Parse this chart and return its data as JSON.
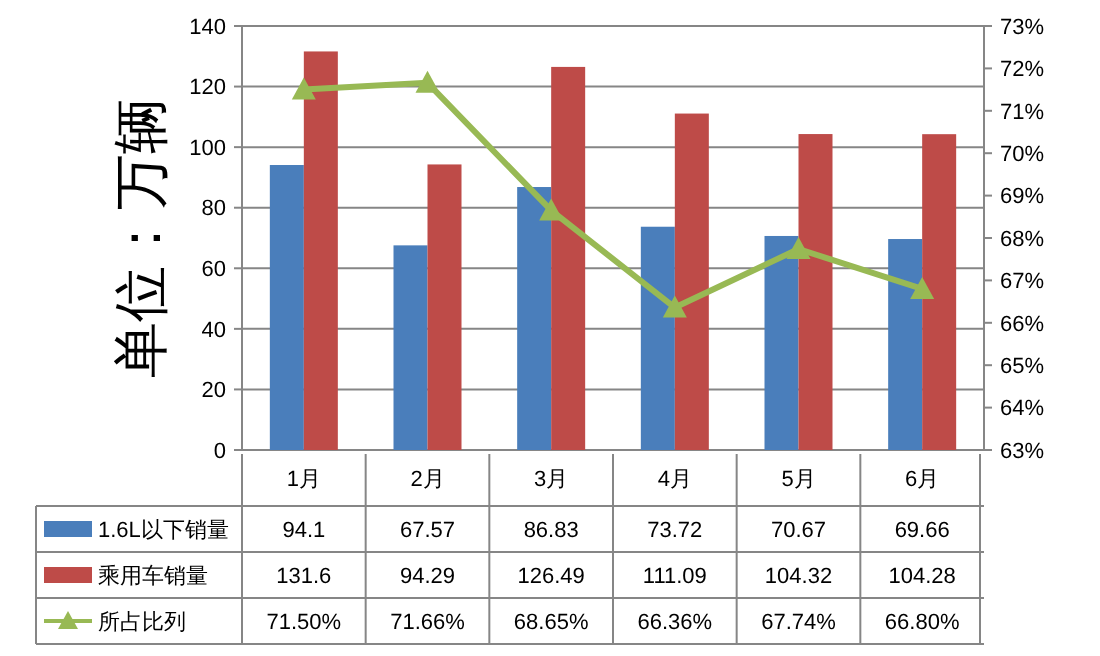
{
  "chart_data": {
    "type": "bar",
    "ylabel": "单位：万辆",
    "categories": [
      "1月",
      "2月",
      "3月",
      "4月",
      "5月",
      "6月"
    ],
    "series": [
      {
        "name": "1.6L以下销量",
        "color": "#4a7ebb",
        "values": [
          94.1,
          67.57,
          86.83,
          73.72,
          70.67,
          69.66
        ],
        "value_labels": [
          "94.1",
          "67.57",
          "86.83",
          "73.72",
          "70.67",
          "69.66"
        ]
      },
      {
        "name": "乘用车销量",
        "color": "#be4b48",
        "values": [
          131.6,
          94.29,
          126.49,
          111.09,
          104.32,
          104.28
        ],
        "value_labels": [
          "131.6",
          "94.29",
          "126.49",
          "111.09",
          "104.32",
          "104.28"
        ]
      },
      {
        "name": "所占比列",
        "type": "line",
        "axis": "y2",
        "color": "#98b954",
        "marker": "triangle",
        "values": [
          71.5,
          71.66,
          68.65,
          66.36,
          67.74,
          66.8
        ],
        "value_labels": [
          "71.50%",
          "71.66%",
          "68.65%",
          "66.36%",
          "67.74%",
          "66.80%"
        ]
      }
    ],
    "ylim": [
      0,
      140
    ],
    "yticks": [
      0,
      20,
      40,
      60,
      80,
      100,
      120,
      140
    ],
    "y2lim": [
      63,
      73
    ],
    "y2ticks": [
      {
        "value": 63,
        "label": "63%"
      },
      {
        "value": 64,
        "label": "64%"
      },
      {
        "value": 65,
        "label": "65%"
      },
      {
        "value": 66,
        "label": "66%"
      },
      {
        "value": 67,
        "label": "67%"
      },
      {
        "value": 68,
        "label": "68%"
      },
      {
        "value": 69,
        "label": "69%"
      },
      {
        "value": 70,
        "label": "70%"
      },
      {
        "value": 71,
        "label": "71%"
      },
      {
        "value": 72,
        "label": "72%"
      },
      {
        "value": 73,
        "label": "73%"
      }
    ],
    "grid": "y",
    "legend": "bottom"
  }
}
